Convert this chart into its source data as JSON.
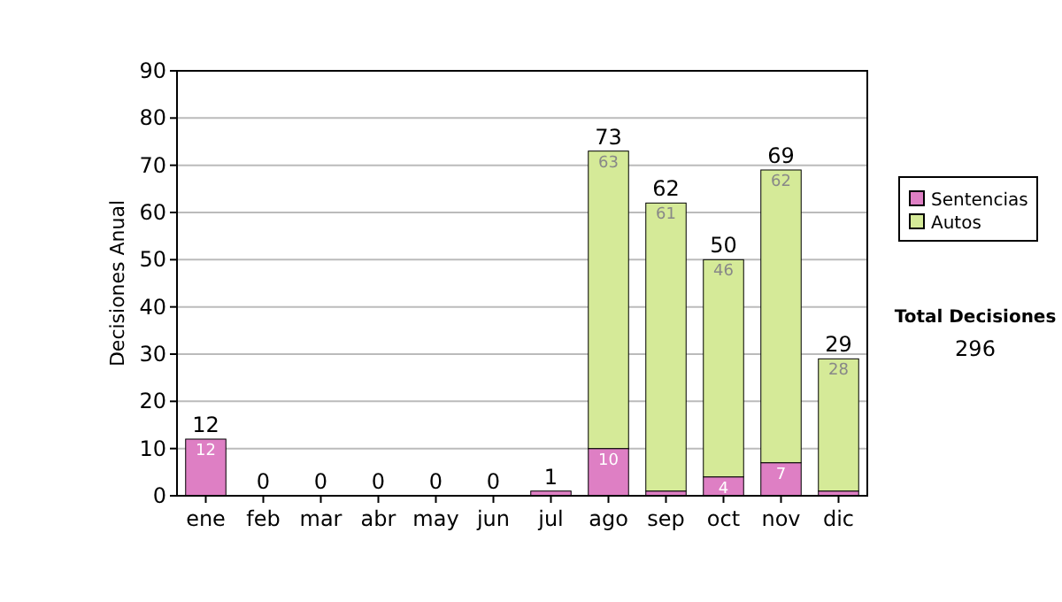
{
  "chart_data": {
    "type": "bar",
    "stacked": true,
    "ylabel": "Decisiones Anual",
    "categories": [
      "ene",
      "feb",
      "mar",
      "abr",
      "may",
      "jun",
      "jul",
      "ago",
      "sep",
      "oct",
      "nov",
      "dic"
    ],
    "series": [
      {
        "name": "Sentencias",
        "color": "#de7fc4",
        "values": [
          12,
          0,
          0,
          0,
          0,
          0,
          1,
          10,
          1,
          4,
          7,
          1
        ],
        "value_labels": [
          "12",
          null,
          null,
          null,
          null,
          null,
          null,
          "10",
          null,
          "4",
          "7",
          null
        ]
      },
      {
        "name": "Autos",
        "color": "#d5ea98",
        "values": [
          0,
          0,
          0,
          0,
          0,
          0,
          0,
          63,
          61,
          46,
          62,
          28
        ],
        "value_labels": [
          null,
          null,
          null,
          null,
          null,
          null,
          null,
          "63",
          "61",
          "46",
          "62",
          "28"
        ]
      }
    ],
    "totals": [
      "12",
      "0",
      "0",
      "0",
      "0",
      "0",
      "1",
      "73",
      "62",
      "50",
      "69",
      "29"
    ],
    "ylim": [
      0,
      90
    ],
    "yticks": [
      0,
      10,
      20,
      30,
      40,
      50,
      60,
      70,
      80,
      90
    ],
    "grid": "y",
    "legend": "right",
    "annotations": [
      "Total Decisiones",
      "296"
    ]
  }
}
